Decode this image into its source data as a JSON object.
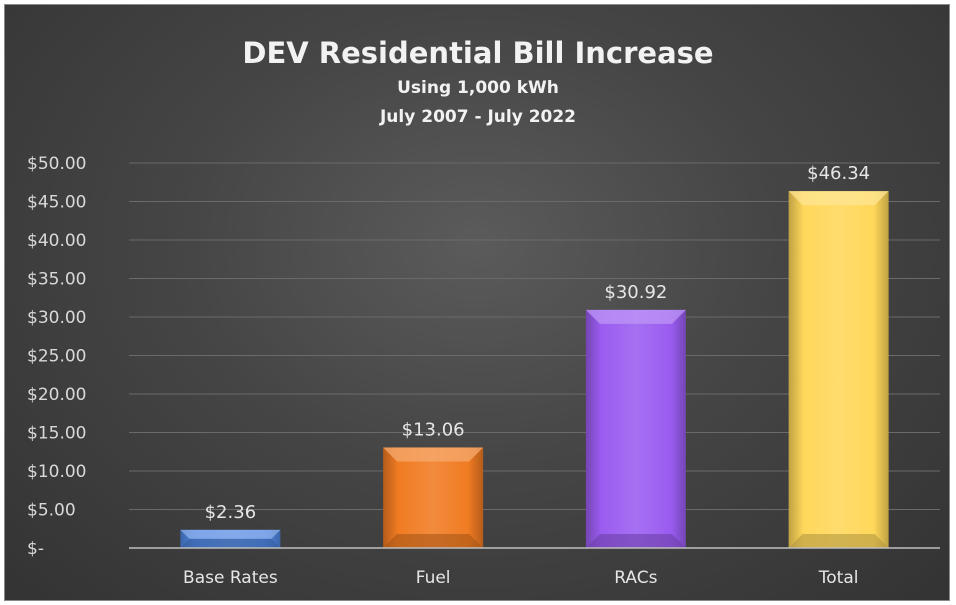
{
  "chart_data": {
    "type": "bar",
    "title": "DEV Residential Bill Increase",
    "subtitle_lines": [
      "Using 1,000 kWh",
      "July 2007 - July 2022"
    ],
    "categories": [
      "Base Rates",
      "Fuel",
      "RACs",
      "Total"
    ],
    "values": [
      2.36,
      13.06,
      30.92,
      46.34
    ],
    "data_labels": [
      "$2.36",
      "$13.06",
      "$30.92",
      "$46.34"
    ],
    "bar_colors": [
      "#4f86e0",
      "#f07b22",
      "#9a5cf0",
      "#ffd75a"
    ],
    "ylim": [
      0,
      50
    ],
    "y_ticks": [
      0,
      5,
      10,
      15,
      20,
      25,
      30,
      35,
      40,
      45,
      50
    ],
    "y_tick_labels": [
      "$-",
      "$5.00",
      "$10.00",
      "$15.00",
      "$20.00",
      "$25.00",
      "$30.00",
      "$35.00",
      "$40.00",
      "$45.00",
      "$50.00"
    ],
    "xlabel": "",
    "ylabel": "",
    "grid": true,
    "legend": "none"
  }
}
